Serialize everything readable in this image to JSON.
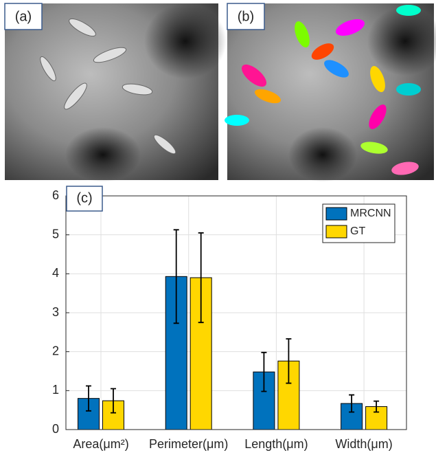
{
  "panels": [
    {
      "label": "(a)"
    },
    {
      "label": "(b)"
    }
  ],
  "chart_data": {
    "type": "bar",
    "panel_label": "(c)",
    "categories": [
      "Area(μm²)",
      "Perimeter(μm)",
      "Length(μm)",
      "Width(μm)"
    ],
    "series": [
      {
        "name": "MRCNN",
        "color": "#0072bd",
        "values": [
          0.8,
          3.93,
          1.48,
          0.67
        ],
        "errors": [
          0.32,
          1.2,
          0.5,
          0.22
        ]
      },
      {
        "name": "GT",
        "color": "#ffd700",
        "values": [
          0.74,
          3.9,
          1.76,
          0.59
        ],
        "errors": [
          0.31,
          1.15,
          0.57,
          0.14
        ]
      }
    ],
    "ylim": [
      0,
      6
    ],
    "yticks": [
      0,
      1,
      2,
      3,
      4,
      5,
      6
    ],
    "grid": true,
    "legend": "upper right"
  }
}
